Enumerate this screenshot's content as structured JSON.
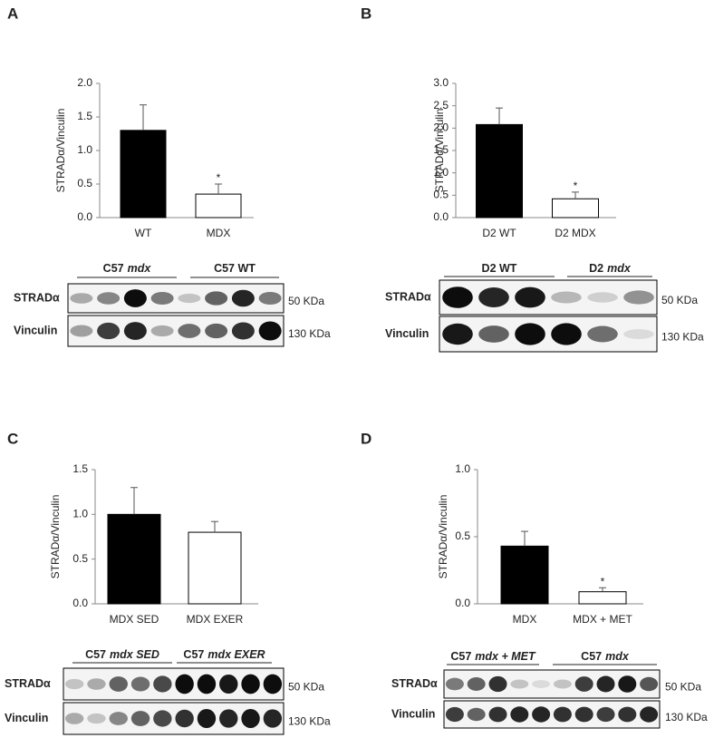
{
  "chart_data": [
    {
      "type": "bar",
      "panel": "A",
      "ylabel": "STRADα/Vinculin",
      "categories": [
        "WT",
        "MDX"
      ],
      "values": [
        1.3,
        0.35
      ],
      "errors": [
        0.38,
        0.15
      ],
      "colors": [
        "#000000",
        "#ffffff"
      ],
      "significance": [
        null,
        "*"
      ],
      "ylim": [
        0,
        2
      ],
      "yticks": [
        {
          "value": 0,
          "label": "0.0"
        },
        {
          "value": 0.5,
          "label": "0.5"
        },
        {
          "value": 1,
          "label": "1.0"
        },
        {
          "value": 1.5,
          "label": "1.5"
        },
        {
          "value": 2,
          "label": "2.0"
        }
      ]
    },
    {
      "type": "bar",
      "panel": "B",
      "ylabel": "STRADα/Vinculin",
      "categories": [
        "D2 WT",
        "D2 MDX"
      ],
      "values": [
        2.08,
        0.42
      ],
      "errors": [
        0.37,
        0.15
      ],
      "colors": [
        "#000000",
        "#ffffff"
      ],
      "significance": [
        null,
        "*"
      ],
      "ylim": [
        0,
        3
      ],
      "yticks": [
        {
          "value": 0,
          "label": "0.0"
        },
        {
          "value": 0.5,
          "label": "0.5"
        },
        {
          "value": 1,
          "label": "1.0"
        },
        {
          "value": 1.5,
          "label": "1.5"
        },
        {
          "value": 2,
          "label": "2.0"
        },
        {
          "value": 2.5,
          "label": "2.5"
        },
        {
          "value": 3,
          "label": "3.0"
        }
      ]
    },
    {
      "type": "bar",
      "panel": "C",
      "ylabel": "STRADα/Vinculin",
      "categories": [
        "MDX SED",
        "MDX EXER"
      ],
      "values": [
        1.0,
        0.8
      ],
      "errors": [
        0.3,
        0.12
      ],
      "colors": [
        "#000000",
        "#ffffff"
      ],
      "significance": [
        null,
        null
      ],
      "ylim": [
        0,
        1.5
      ],
      "yticks": [
        {
          "value": 0,
          "label": "0.0"
        },
        {
          "value": 0.5,
          "label": "0.5"
        },
        {
          "value": 1,
          "label": "1.0"
        },
        {
          "value": 1.5,
          "label": "1.5"
        }
      ]
    },
    {
      "type": "bar",
      "panel": "D",
      "ylabel": "STRADα/Vinculin",
      "categories": [
        "MDX",
        "MDX + MET"
      ],
      "values": [
        0.43,
        0.09
      ],
      "errors": [
        0.11,
        0.03
      ],
      "colors": [
        "#000000",
        "#ffffff"
      ],
      "significance": [
        null,
        "*"
      ],
      "ylim": [
        0,
        1
      ],
      "yticks": [
        {
          "value": 0,
          "label": "0.0"
        },
        {
          "value": 0.5,
          "label": "0.5"
        },
        {
          "value": 1,
          "label": "1.0"
        }
      ]
    }
  ],
  "blots": [
    {
      "groups": [
        {
          "text": "C57",
          "italic": "mdx"
        },
        {
          "text": "C57 WT"
        }
      ],
      "rows": [
        {
          "label": "STRADα",
          "size": "50 KDa"
        },
        {
          "label": "Vinculin",
          "size": "130 KDa"
        }
      ]
    },
    {
      "groups": [
        {
          "text": "D2 WT"
        },
        {
          "text": "D2",
          "italic": "mdx"
        }
      ],
      "rows": [
        {
          "label": "STRADα",
          "size": "50 KDa"
        },
        {
          "label": "Vinculin",
          "size": "130 KDa"
        }
      ]
    },
    {
      "groups": [
        {
          "text": "C57",
          "italic": "mdx SED"
        },
        {
          "text": "C57",
          "italic": "mdx EXER"
        }
      ],
      "rows": [
        {
          "label": "STRADα",
          "size": "50 KDa"
        },
        {
          "label": "Vinculin",
          "size": "130 KDa"
        }
      ]
    },
    {
      "groups": [
        {
          "text": "C57",
          "italic": "mdx + MET"
        },
        {
          "text": "C57",
          "italic": "mdx"
        }
      ],
      "rows": [
        {
          "label": "STRADα",
          "size": "50 KDa"
        },
        {
          "label": "Vinculin",
          "size": "130 KDa"
        }
      ]
    }
  ]
}
